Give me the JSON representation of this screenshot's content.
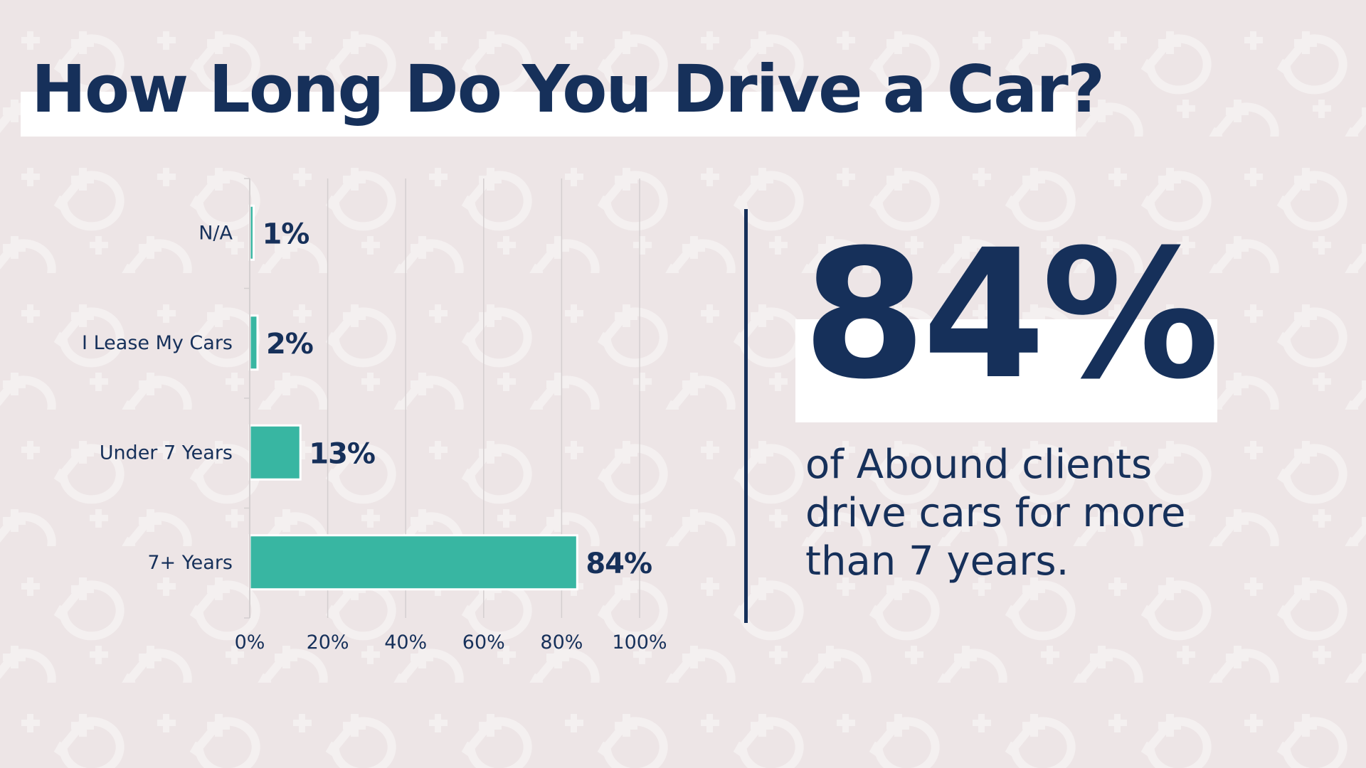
{
  "colors": {
    "background": "#ede5e6",
    "pattern": "#f4f0f0",
    "navy": "#16305a",
    "teal": "#38b6a2",
    "grid": "#d4cfd0"
  },
  "title": "How Long Do You Drive a Car?",
  "highlight": {
    "value": "84%",
    "caption": "of Abound clients drive cars for more than 7 years."
  },
  "chart_data": {
    "type": "bar",
    "orientation": "horizontal",
    "categories": [
      "N/A",
      "I Lease My Cars",
      "Under 7 Years",
      "7+ Years"
    ],
    "values": [
      1,
      2,
      13,
      84
    ],
    "data_labels": [
      "1%",
      "2%",
      "13%",
      "84%"
    ],
    "xlim": [
      0,
      100
    ],
    "xticks": [
      0,
      20,
      40,
      60,
      80,
      100
    ],
    "xtick_labels": [
      "0%",
      "20%",
      "40%",
      "60%",
      "80%",
      "100%"
    ],
    "grid": true,
    "legend": "none"
  }
}
